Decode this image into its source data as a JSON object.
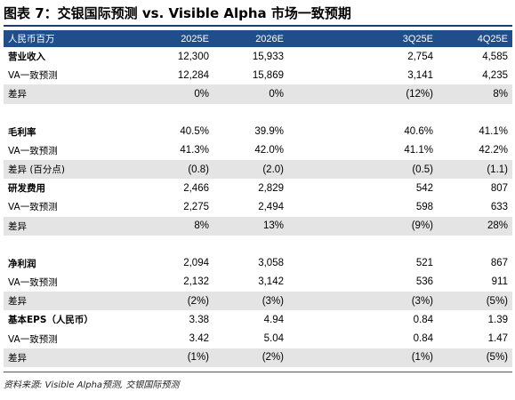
{
  "title": "图表 7：交银国际预测 vs. Visible Alpha 市场一致预期",
  "header": {
    "label": "人民币百万",
    "cols": [
      "2025E",
      "2026E",
      "",
      "3Q25E",
      "4Q25E"
    ]
  },
  "rows": [
    {
      "label": "营业收入",
      "bold": true,
      "shade": false,
      "values": [
        "12,300",
        "15,933",
        "",
        "2,754",
        "4,585"
      ]
    },
    {
      "label": "VA一致预测",
      "bold": false,
      "shade": false,
      "values": [
        "12,284",
        "15,869",
        "",
        "3,141",
        "4,235"
      ]
    },
    {
      "label": "差异",
      "bold": false,
      "shade": true,
      "values": [
        "0%",
        "0%",
        "",
        "(12%)",
        "8%"
      ]
    },
    {
      "spacer": true
    },
    {
      "label": "毛利率",
      "bold": true,
      "shade": false,
      "values": [
        "40.5%",
        "39.9%",
        "",
        "40.6%",
        "41.1%"
      ]
    },
    {
      "label": "VA一致预测",
      "bold": false,
      "shade": false,
      "values": [
        "41.3%",
        "42.0%",
        "",
        "41.1%",
        "42.2%"
      ]
    },
    {
      "label": "差异 (百分点)",
      "bold": false,
      "shade": true,
      "values": [
        "(0.8)",
        "(2.0)",
        "",
        "(0.5)",
        "(1.1)"
      ]
    },
    {
      "label": "研发费用",
      "bold": true,
      "shade": false,
      "values": [
        "2,466",
        "2,829",
        "",
        "542",
        "807"
      ]
    },
    {
      "label": "VA一致预测",
      "bold": false,
      "shade": false,
      "values": [
        "2,275",
        "2,494",
        "",
        "598",
        "633"
      ]
    },
    {
      "label": "差异",
      "bold": false,
      "shade": true,
      "values": [
        "8%",
        "13%",
        "",
        "(9%)",
        "28%"
      ]
    },
    {
      "spacer": true
    },
    {
      "label": "净利润",
      "bold": true,
      "shade": false,
      "values": [
        "2,094",
        "3,058",
        "",
        "521",
        "867"
      ]
    },
    {
      "label": "VA一致预测",
      "bold": false,
      "shade": false,
      "values": [
        "2,132",
        "3,142",
        "",
        "536",
        "911"
      ]
    },
    {
      "label": "差异",
      "bold": false,
      "shade": true,
      "values": [
        "(2%)",
        "(3%)",
        "",
        "(3%)",
        "(5%)"
      ]
    },
    {
      "label": "基本EPS（人民币）",
      "bold": true,
      "shade": false,
      "values": [
        "3.38",
        "4.94",
        "",
        "0.84",
        "1.39"
      ]
    },
    {
      "label": "VA一致预测",
      "bold": false,
      "shade": false,
      "values": [
        "3.42",
        "5.04",
        "",
        "0.84",
        "1.47"
      ]
    },
    {
      "label": "差异",
      "bold": false,
      "shade": true,
      "values": [
        "(1%)",
        "(2%)",
        "",
        "(1%)",
        "(5%)"
      ]
    }
  ],
  "source": "资料来源: Visible Alpha预测, 交银国际预测"
}
